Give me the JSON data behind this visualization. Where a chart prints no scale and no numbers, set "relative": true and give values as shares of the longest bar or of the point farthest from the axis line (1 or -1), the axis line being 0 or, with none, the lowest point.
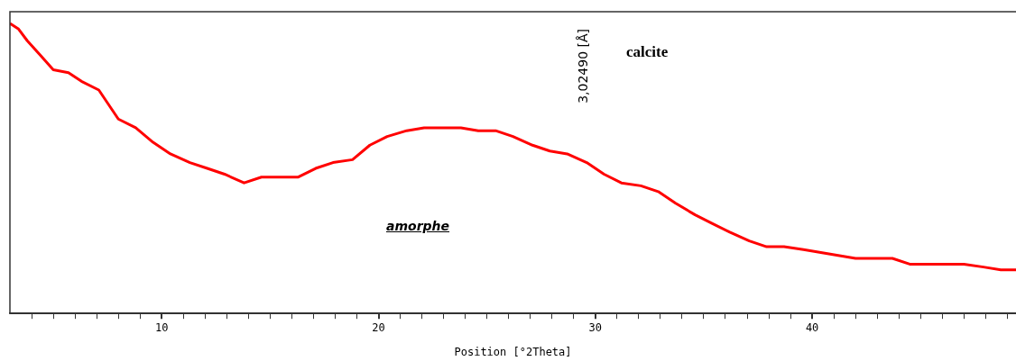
{
  "chart_data": {
    "type": "line",
    "relative": true,
    "color": "#ff0000",
    "xlabel": "Position [°2Theta]",
    "x": [
      3.0,
      3.4,
      3.8,
      4.4,
      5.0,
      5.7,
      6.3,
      7.1,
      8.0,
      8.8,
      9.6,
      10.4,
      11.3,
      12.1,
      12.9,
      13.8,
      14.6,
      15.4,
      16.3,
      17.1,
      17.9,
      18.8,
      19.6,
      20.4,
      21.3,
      22.1,
      22.9,
      23.8,
      24.6,
      25.4,
      26.2,
      27.1,
      27.9,
      28.7,
      29.6,
      30.4,
      31.2,
      32.1,
      32.9,
      33.7,
      34.6,
      35.4,
      36.2,
      37.1,
      37.9,
      38.7,
      39.6,
      40.4,
      41.2,
      42.0,
      42.9,
      43.7,
      44.5,
      45.4,
      46.2,
      47.0,
      47.9,
      48.7,
      49.4
    ],
    "values": [
      1.0,
      0.98,
      0.94,
      0.89,
      0.84,
      0.83,
      0.8,
      0.77,
      0.67,
      0.64,
      0.59,
      0.55,
      0.52,
      0.5,
      0.48,
      0.45,
      0.47,
      0.47,
      0.47,
      0.5,
      0.52,
      0.53,
      0.58,
      0.61,
      0.63,
      0.64,
      0.64,
      0.64,
      0.63,
      0.63,
      0.61,
      0.58,
      0.56,
      0.55,
      0.52,
      0.48,
      0.45,
      0.44,
      0.42,
      0.38,
      0.34,
      0.31,
      0.28,
      0.25,
      0.23,
      0.23,
      0.22,
      0.21,
      0.2,
      0.19,
      0.19,
      0.19,
      0.17,
      0.17,
      0.17,
      0.17,
      0.16,
      0.15,
      0.15
    ],
    "xlim": [
      3,
      49.4
    ],
    "xticks": [
      {
        "value": 4,
        "label": null
      },
      {
        "value": 5,
        "label": null
      },
      {
        "value": 6,
        "label": null
      },
      {
        "value": 7,
        "label": null
      },
      {
        "value": 8,
        "label": null
      },
      {
        "value": 9,
        "label": null
      },
      10,
      {
        "value": 11,
        "label": null
      },
      {
        "value": 12,
        "label": null
      },
      {
        "value": 13,
        "label": null
      },
      {
        "value": 14,
        "label": null
      },
      {
        "value": 15,
        "label": null
      },
      {
        "value": 16,
        "label": null
      },
      {
        "value": 17,
        "label": null
      },
      {
        "value": 18,
        "label": null
      },
      {
        "value": 19,
        "label": null
      },
      20,
      {
        "value": 21,
        "label": null
      },
      {
        "value": 22,
        "label": null
      },
      {
        "value": 23,
        "label": null
      },
      {
        "value": 24,
        "label": null
      },
      {
        "value": 25,
        "label": null
      },
      {
        "value": 26,
        "label": null
      },
      {
        "value": 27,
        "label": null
      },
      {
        "value": 28,
        "label": null
      },
      {
        "value": 29,
        "label": null
      },
      30,
      {
        "value": 31,
        "label": null
      },
      {
        "value": 32,
        "label": null
      },
      {
        "value": 33,
        "label": null
      },
      {
        "value": 34,
        "label": null
      },
      {
        "value": 35,
        "label": null
      },
      {
        "value": 36,
        "label": null
      },
      {
        "value": 37,
        "label": null
      },
      {
        "value": 38,
        "label": null
      },
      {
        "value": 39,
        "label": null
      },
      40,
      {
        "value": 41,
        "label": null
      },
      {
        "value": 42,
        "label": null
      },
      {
        "value": 43,
        "label": null
      },
      {
        "value": 44,
        "label": null
      },
      {
        "value": 45,
        "label": null
      },
      {
        "value": 46,
        "label": null
      },
      {
        "value": 47,
        "label": null
      },
      {
        "value": 48,
        "label": null
      },
      {
        "value": 49,
        "label": null
      }
    ],
    "annotations": [
      "3,02490 [Å]",
      "calcite",
      "amorphe"
    ]
  }
}
